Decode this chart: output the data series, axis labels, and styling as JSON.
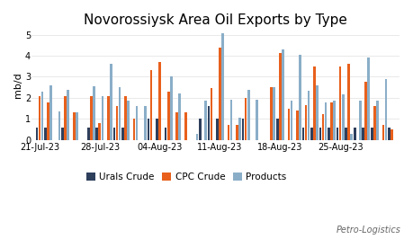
{
  "title": "Novorossiysk Area Oil Exports by Type",
  "ylabel": "mb/d",
  "watermark": "Petro-Logistics",
  "x_tick_labels": [
    "21-Jul-23",
    "28-Jul-23",
    "04-Aug-23",
    "11-Aug-23",
    "18-Aug-23",
    "25-Aug-23"
  ],
  "x_tick_positions": [
    0,
    7,
    14,
    21,
    28,
    35
  ],
  "urals_crude": [
    0.6,
    0.6,
    0.0,
    0.6,
    0.0,
    0.0,
    0.6,
    0.6,
    0.0,
    0.6,
    0.6,
    0.0,
    0.0,
    1.0,
    1.0,
    0.6,
    0.0,
    0.0,
    0.0,
    1.0,
    1.6,
    1.0,
    0.0,
    0.0,
    1.0,
    0.0,
    0.0,
    0.0,
    1.0,
    0.0,
    0.0,
    0.6,
    0.6,
    0.6,
    0.6,
    0.6,
    0.6,
    0.6,
    0.6,
    0.6,
    0.0,
    0.6
  ],
  "cpc_crude": [
    2.1,
    1.8,
    0.0,
    2.1,
    1.3,
    0.0,
    2.1,
    0.8,
    2.1,
    1.6,
    2.1,
    1.0,
    0.0,
    3.3,
    3.7,
    2.3,
    1.3,
    1.3,
    0.0,
    0.0,
    2.45,
    4.4,
    0.7,
    0.7,
    2.0,
    0.0,
    0.0,
    2.5,
    4.15,
    1.5,
    1.4,
    1.65,
    3.5,
    1.25,
    1.8,
    3.5,
    3.6,
    0.0,
    2.75,
    1.6,
    0.7,
    0.5
  ],
  "products": [
    2.3,
    2.6,
    1.35,
    2.4,
    1.3,
    0.0,
    2.55,
    2.1,
    3.6,
    2.5,
    1.85,
    1.6,
    1.6,
    0.0,
    0.0,
    3.0,
    2.2,
    0.0,
    0.3,
    1.85,
    0.0,
    5.05,
    1.9,
    1.05,
    2.4,
    1.9,
    0.0,
    2.5,
    4.3,
    1.85,
    4.05,
    2.35,
    2.6,
    1.8,
    1.85,
    2.15,
    0.3,
    1.85,
    3.9,
    1.85,
    2.9,
    0.0
  ],
  "colors": {
    "urals_crude": "#2E3F5C",
    "cpc_crude": "#E8601C",
    "products": "#8AAEC8"
  },
  "ylim": [
    0,
    5.2
  ],
  "yticks": [
    0,
    1,
    2,
    3,
    4,
    5
  ],
  "background_color": "#FFFFFF",
  "legend_labels": [
    "Urals Crude",
    "CPC Crude",
    "Products"
  ],
  "bar_width": 0.28,
  "bar_gap": 0.04
}
